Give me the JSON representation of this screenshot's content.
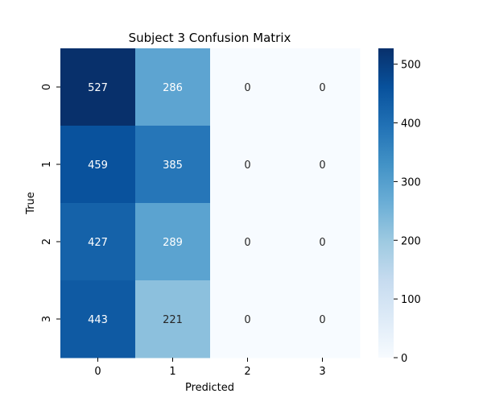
{
  "chart_data": {
    "type": "heatmap",
    "title": "Subject 3 Confusion Matrix",
    "xlabel": "Predicted",
    "ylabel": "True",
    "x_categories": [
      "0",
      "1",
      "2",
      "3"
    ],
    "y_categories": [
      "0",
      "1",
      "2",
      "3"
    ],
    "values": [
      [
        527,
        286,
        0,
        0
      ],
      [
        459,
        385,
        0,
        0
      ],
      [
        427,
        289,
        0,
        0
      ],
      [
        443,
        221,
        0,
        0
      ]
    ],
    "colormap": "Blues",
    "color_range": [
      0,
      527
    ],
    "colorbar_ticks": [
      "0",
      "100",
      "200",
      "300",
      "400",
      "500"
    ],
    "low_color": "#f7fbff",
    "high_color": "#08306b",
    "dark_text_color": "#262626",
    "light_text_color": "#ffffff",
    "grid": false,
    "legend": "colorbar-right"
  }
}
